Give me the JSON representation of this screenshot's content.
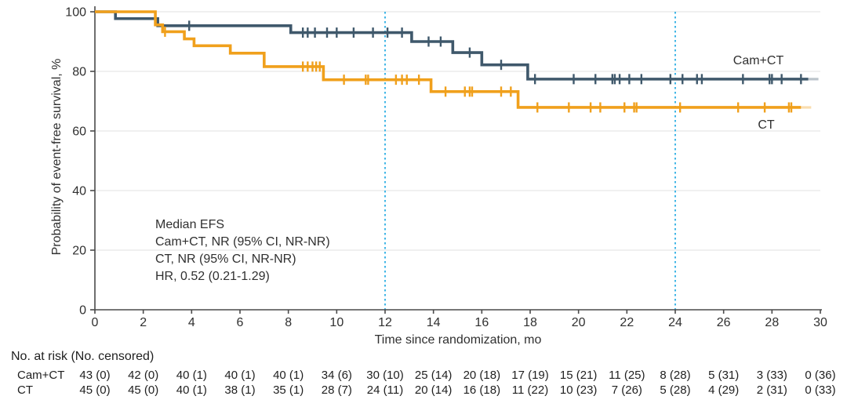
{
  "chart_data": {
    "type": "line",
    "variant": "kaplan_meier_step_curves",
    "title": "",
    "xlabel": "Time since randomization, mo",
    "ylabel": "Probability of event-free survival, %",
    "xlim": [
      0,
      30
    ],
    "ylim": [
      0,
      100
    ],
    "xticks": [
      0,
      2,
      4,
      6,
      8,
      10,
      12,
      14,
      16,
      18,
      20,
      22,
      24,
      26,
      28,
      30
    ],
    "yticks": [
      0,
      20,
      40,
      60,
      80,
      100
    ],
    "grid": "horizontal",
    "grid_color": "#e7e7e7",
    "axis_color": "#4a4a4a",
    "reference_lines_x": [
      12,
      24
    ],
    "reference_line_color": "#41b6e6",
    "annotation": {
      "lines": [
        "Median EFS",
        "Cam+CT, NR (95% CI, NR-NR)",
        "CT, NR (95% CI, NR-NR)",
        "HR, 0.52 (0.21-1.29)"
      ]
    },
    "series": [
      {
        "name": "Cam+CT",
        "color": "#3f586b",
        "end": 29.5,
        "steps": [
          [
            0,
            100
          ],
          [
            0.85,
            97.7
          ],
          [
            2.6,
            95.3
          ],
          [
            8.1,
            93.0
          ],
          [
            13.1,
            90.0
          ],
          [
            14.8,
            86.3
          ],
          [
            16.0,
            82.2
          ],
          [
            17.9,
            77.4
          ]
        ],
        "censors": [
          3.9,
          8.6,
          8.8,
          9.1,
          9.6,
          10.0,
          10.7,
          11.5,
          12.1,
          12.7,
          13.8,
          14.3,
          15.5,
          16.8,
          18.2,
          19.8,
          20.7,
          21.4,
          21.5,
          21.7,
          22.1,
          22.6,
          23.8,
          24.3,
          24.9,
          25.1,
          26.8,
          27.9,
          28.0,
          28.4,
          29.2
        ]
      },
      {
        "name": "CT",
        "color": "#f0a01c",
        "end": 29.2,
        "steps": [
          [
            0,
            100
          ],
          [
            2.5,
            95.6
          ],
          [
            2.8,
            93.3
          ],
          [
            3.7,
            90.9
          ],
          [
            4.1,
            88.6
          ],
          [
            5.6,
            86.1
          ],
          [
            7.0,
            81.6
          ],
          [
            9.45,
            77.2
          ],
          [
            13.9,
            73.2
          ],
          [
            17.5,
            67.9
          ]
        ],
        "censors": [
          2.9,
          8.6,
          8.8,
          9.0,
          9.15,
          9.3,
          10.3,
          11.2,
          11.3,
          12.45,
          12.7,
          12.9,
          13.4,
          14.5,
          15.3,
          15.5,
          15.6,
          16.8,
          17.2,
          18.3,
          19.6,
          20.5,
          20.9,
          21.9,
          22.3,
          22.4,
          24.2,
          26.6,
          27.7,
          28.7,
          28.8
        ]
      }
    ],
    "risk_table": {
      "header": "No. at risk (No. censored)",
      "times": [
        0,
        2,
        4,
        6,
        8,
        10,
        12,
        14,
        16,
        18,
        20,
        22,
        24,
        26,
        28,
        30
      ],
      "rows": [
        {
          "label": "Cam+CT",
          "values": [
            "43 (0)",
            "42 (0)",
            "40 (1)",
            "40 (1)",
            "40 (1)",
            "34 (6)",
            "30 (10)",
            "25 (14)",
            "20 (18)",
            "17 (19)",
            "15 (21)",
            "11 (25)",
            "8 (28)",
            "5 (31)",
            "3 (33)",
            "0 (36)"
          ]
        },
        {
          "label": "CT",
          "values": [
            "45 (0)",
            "45 (0)",
            "40 (1)",
            "38 (1)",
            "35 (1)",
            "28 (7)",
            "24 (11)",
            "20 (14)",
            "16 (18)",
            "11 (22)",
            "10 (23)",
            "7 (26)",
            "5 (28)",
            "4 (29)",
            "2 (31)",
            "0 (33)"
          ]
        }
      ]
    }
  }
}
